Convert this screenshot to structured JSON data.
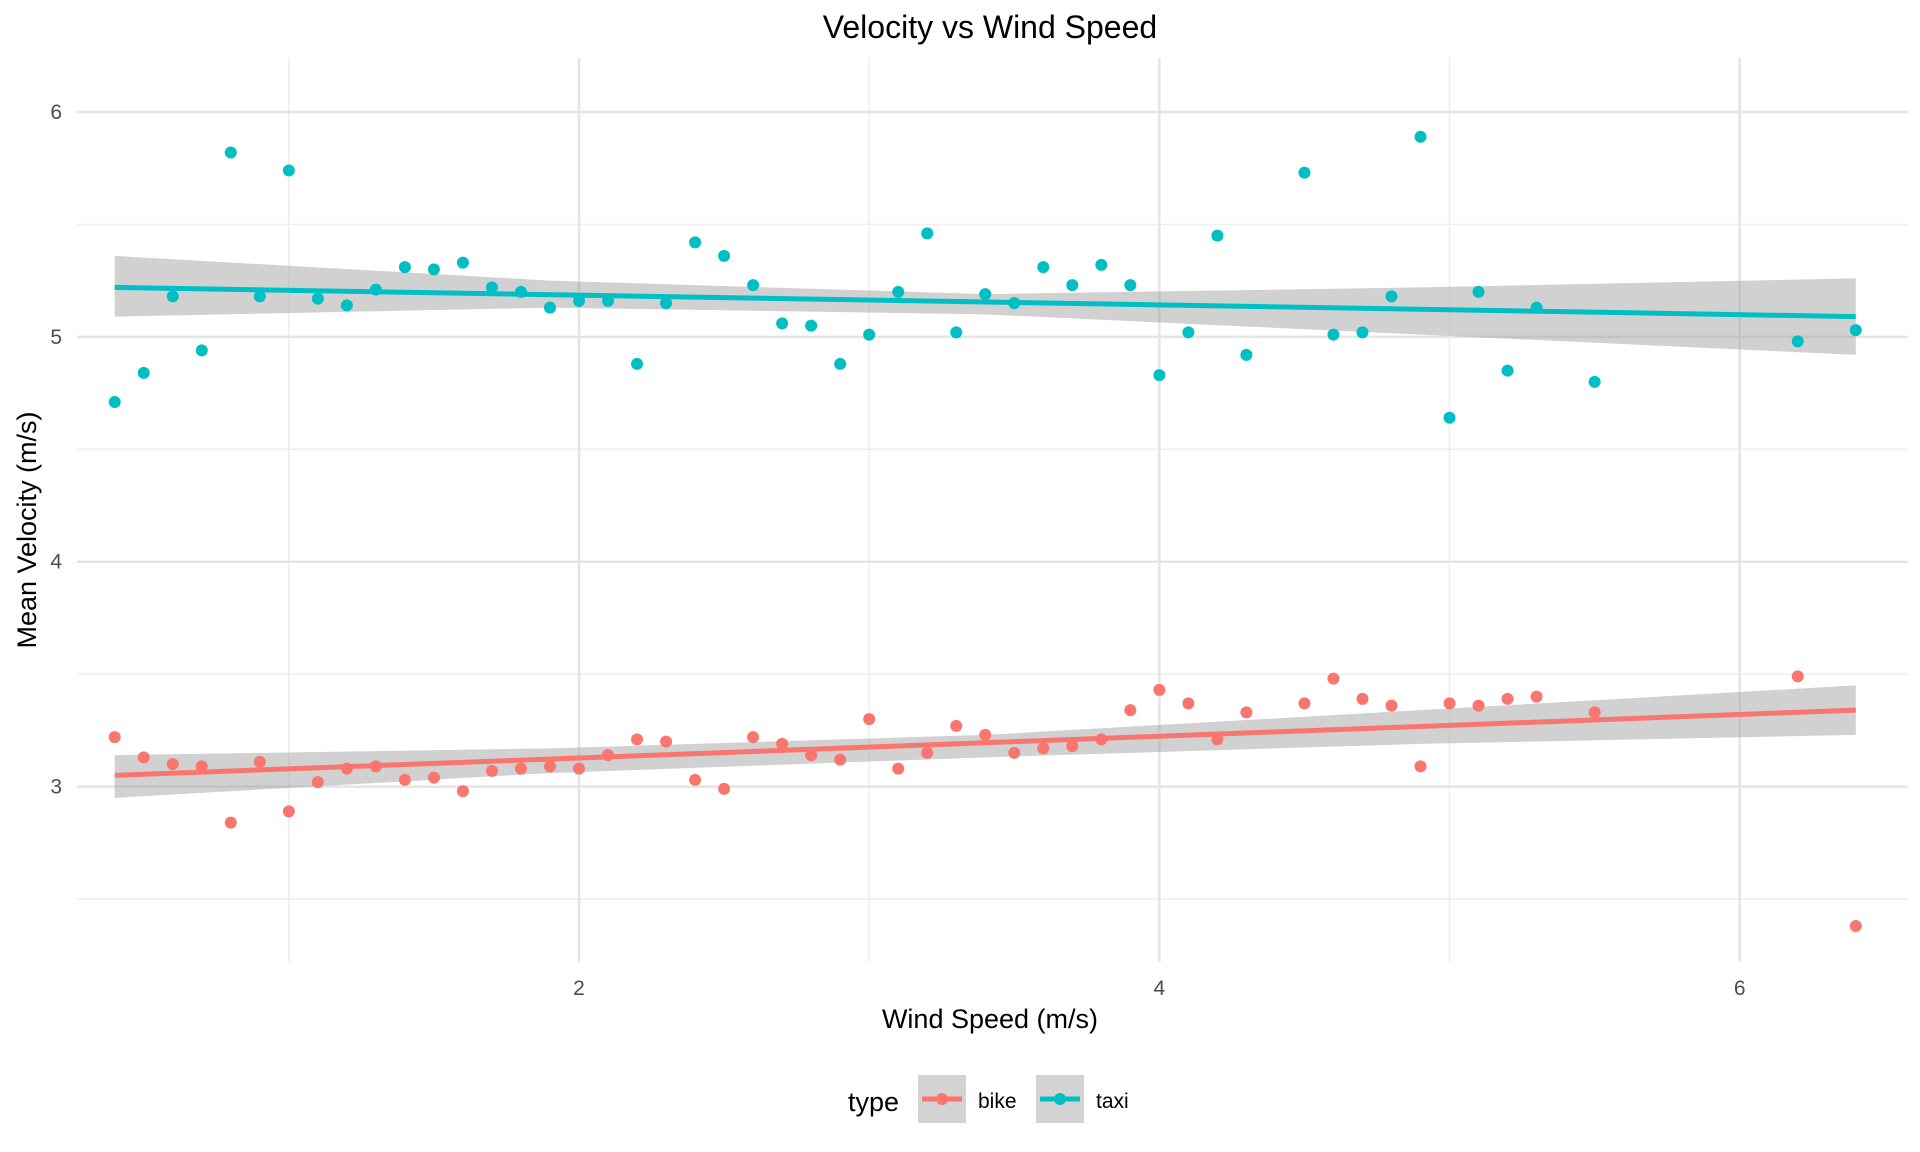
{
  "chart_data": {
    "type": "scatter",
    "title": "Velocity vs Wind Speed",
    "xlabel": "Wind Speed (m/s)",
    "ylabel": "Mean Velocity (m/s)",
    "xlim": [
      0.27,
      6.58
    ],
    "ylim": [
      2.22,
      6.24
    ],
    "x_ticks": [
      2,
      4,
      6
    ],
    "x_minor_ticks": [
      1,
      3,
      5
    ],
    "y_ticks": [
      3,
      4,
      5,
      6
    ],
    "y_minor_ticks": [
      2.5,
      3.5,
      4.5,
      5.5
    ],
    "grid": true,
    "legend": {
      "title": "type",
      "position": "bottom"
    },
    "series": [
      {
        "name": "bike",
        "color": "#F8766D",
        "x": [
          0.4,
          0.5,
          0.6,
          0.7,
          0.8,
          0.9,
          1.0,
          1.1,
          1.2,
          1.3,
          1.4,
          1.5,
          1.6,
          1.7,
          1.8,
          1.9,
          2.0,
          2.1,
          2.2,
          2.3,
          2.4,
          2.5,
          2.6,
          2.7,
          2.8,
          2.9,
          3.0,
          3.1,
          3.2,
          3.3,
          3.4,
          3.5,
          3.6,
          3.7,
          3.8,
          3.9,
          4.0,
          4.1,
          4.2,
          4.3,
          4.5,
          4.6,
          4.7,
          4.8,
          4.9,
          5.0,
          5.1,
          5.2,
          5.3,
          5.5,
          6.2,
          6.4
        ],
        "y": [
          3.22,
          3.13,
          3.1,
          3.09,
          2.84,
          3.11,
          2.89,
          3.02,
          3.08,
          3.09,
          3.03,
          3.04,
          2.98,
          3.07,
          3.08,
          3.09,
          3.08,
          3.14,
          3.21,
          3.2,
          3.03,
          2.99,
          3.22,
          3.19,
          3.14,
          3.12,
          3.3,
          3.08,
          3.15,
          3.27,
          3.23,
          3.15,
          3.17,
          3.18,
          3.21,
          3.34,
          3.43,
          3.37,
          3.21,
          3.33,
          3.37,
          3.48,
          3.39,
          3.36,
          3.09,
          3.37,
          3.36,
          3.39,
          3.4,
          3.33,
          3.49,
          2.38
        ],
        "trend": {
          "x": [
            0.4,
            6.4
          ],
          "y": [
            3.05,
            3.34
          ]
        },
        "ci_lower": [
          2.95,
          3.06,
          3.13,
          3.19,
          3.23
        ],
        "ci_upper": [
          3.14,
          3.17,
          3.23,
          3.34,
          3.45
        ]
      },
      {
        "name": "taxi",
        "color": "#00BFC4",
        "x": [
          0.4,
          0.5,
          0.6,
          0.7,
          0.8,
          0.9,
          1.0,
          1.1,
          1.2,
          1.3,
          1.4,
          1.5,
          1.6,
          1.7,
          1.8,
          1.9,
          2.0,
          2.1,
          2.2,
          2.3,
          2.4,
          2.5,
          2.6,
          2.7,
          2.8,
          2.9,
          3.0,
          3.1,
          3.2,
          3.3,
          3.4,
          3.5,
          3.6,
          3.7,
          3.8,
          3.9,
          4.0,
          4.1,
          4.2,
          4.3,
          4.5,
          4.6,
          4.7,
          4.8,
          4.9,
          5.0,
          5.1,
          5.2,
          5.3,
          5.5,
          6.2,
          6.4
        ],
        "y": [
          4.71,
          4.84,
          5.18,
          4.94,
          5.82,
          5.18,
          5.74,
          5.17,
          5.14,
          5.21,
          5.31,
          5.3,
          5.33,
          5.22,
          5.2,
          5.13,
          5.16,
          5.16,
          4.88,
          5.15,
          5.42,
          5.36,
          5.23,
          5.06,
          5.05,
          4.88,
          5.01,
          5.2,
          5.46,
          5.02,
          5.19,
          5.15,
          5.31,
          5.23,
          5.32,
          5.23,
          4.83,
          5.02,
          5.45,
          4.92,
          5.73,
          5.01,
          5.02,
          5.18,
          5.89,
          4.64,
          5.2,
          4.85,
          5.13,
          4.8,
          4.98,
          5.03
        ],
        "trend": {
          "x": [
            0.4,
            6.4
          ],
          "y": [
            5.22,
            5.09
          ]
        },
        "ci_lower": [
          5.09,
          5.13,
          5.1,
          5.01,
          4.92
        ],
        "ci_upper": [
          5.36,
          5.25,
          5.19,
          5.22,
          5.26
        ]
      }
    ]
  }
}
